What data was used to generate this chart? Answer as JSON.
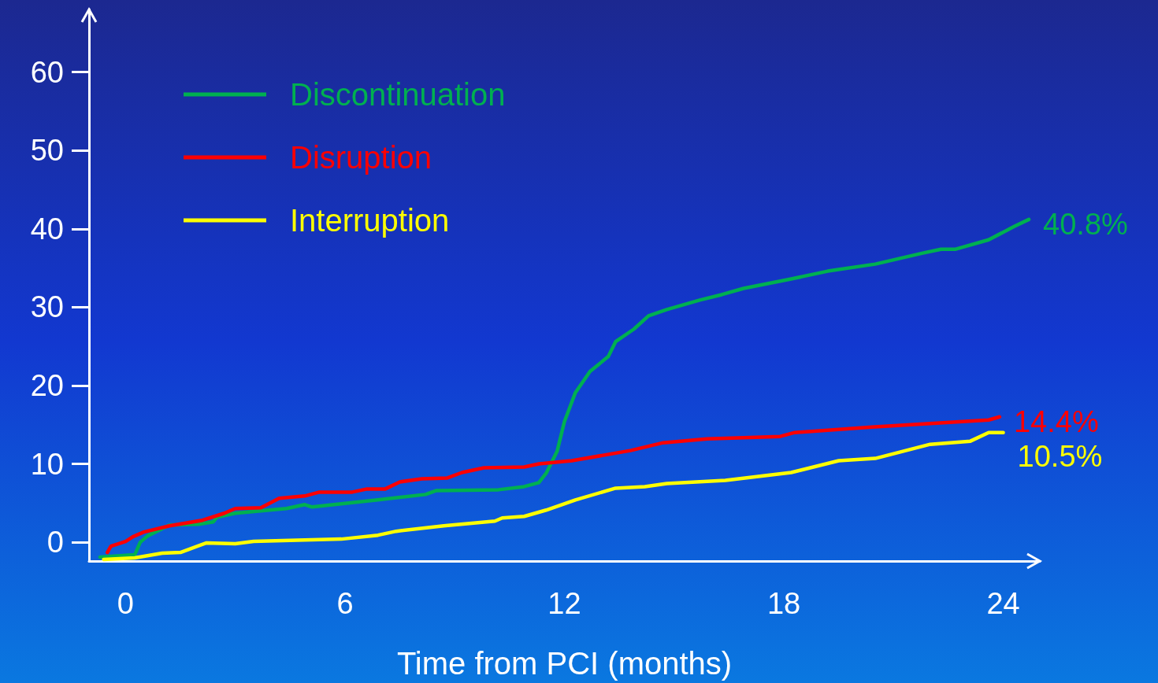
{
  "chart_data": {
    "type": "line",
    "xlabel": "Time from PCI (months)",
    "xlim": [
      -1,
      25
    ],
    "xticks": [
      0,
      6,
      12,
      18,
      24
    ],
    "ylim": [
      -2.4,
      68
    ],
    "yticks": [
      0,
      10,
      20,
      30,
      40,
      50,
      60
    ],
    "grid": false,
    "legend": "top left",
    "marker": "none",
    "line_style": "solid",
    "series": [
      {
        "name": "Discontinuation",
        "color": "#00b050",
        "x": [
          -0.7,
          0.25,
          0.4,
          0.6,
          1.2,
          2.0,
          2.4,
          2.5,
          3.0,
          4.4,
          4.9,
          5.1,
          5.7,
          6.9,
          8.2,
          8.5,
          10.2,
          10.9,
          11.3,
          11.5,
          11.8,
          12.0,
          12.3,
          12.7,
          13.2,
          13.4,
          13.9,
          14.3,
          14.8,
          15.7,
          16.3,
          16.9,
          18.2,
          19.2,
          20.5,
          21.8,
          22.3,
          22.7,
          23.6,
          24.3,
          24.7
        ],
        "values": [
          -1.9,
          -1.6,
          0,
          0.8,
          2.2,
          2.3,
          2.6,
          3.2,
          3.7,
          4.3,
          4.8,
          4.5,
          4.8,
          5.4,
          6.1,
          6.6,
          6.7,
          7.1,
          7.6,
          8.8,
          11.6,
          15.4,
          19.1,
          21.8,
          23.7,
          25.6,
          27.2,
          28.9,
          29.7,
          30.9,
          31.6,
          32.4,
          33.6,
          34.6,
          35.5,
          36.9,
          37.4,
          37.4,
          38.6,
          40.3,
          41.2
        ]
      },
      {
        "name": "Disruption",
        "color": "#ff0000",
        "x": [
          -0.5,
          -0.4,
          0,
          0.2,
          0.5,
          1.2,
          2.1,
          2.7,
          3.0,
          3.7,
          4.2,
          4.9,
          5.3,
          6.2,
          6.6,
          7.1,
          7.5,
          8.1,
          8.8,
          9.2,
          9.8,
          10.9,
          11.3,
          12.2,
          13.8,
          14.7,
          15.9,
          17.9,
          18.3,
          20.4,
          23.6,
          23.9
        ],
        "values": [
          -1.3,
          -0.5,
          0.1,
          0.7,
          1.3,
          2.1,
          2.8,
          3.7,
          4.3,
          4.4,
          5.6,
          5.9,
          6.4,
          6.4,
          6.8,
          6.8,
          7.7,
          8.1,
          8.2,
          8.9,
          9.5,
          9.6,
          10.0,
          10.4,
          11.7,
          12.7,
          13.2,
          13.5,
          14.0,
          14.7,
          15.6,
          16.0
        ]
      },
      {
        "name": "Interruption",
        "color": "#ffff00",
        "x": [
          -0.6,
          0.25,
          1.0,
          1.5,
          2.2,
          3.0,
          3.5,
          5.9,
          6.9,
          7.4,
          8.7,
          10.1,
          10.3,
          10.9,
          11.5,
          12.3,
          13.4,
          14.2,
          14.8,
          16.4,
          18.2,
          19.5,
          20.5,
          21.5,
          22.0,
          23.1,
          23.6,
          24.0
        ],
        "values": [
          -2.2,
          -2.0,
          -1.4,
          -1.3,
          -0.1,
          -0.2,
          0.1,
          0.4,
          0.9,
          1.4,
          2.1,
          2.7,
          3.1,
          3.3,
          4.1,
          5.4,
          6.9,
          7.1,
          7.5,
          7.9,
          8.9,
          10.4,
          10.7,
          11.9,
          12.5,
          12.9,
          14.0,
          14.0
        ]
      }
    ],
    "annotations": [
      {
        "text": "40.8%",
        "x": 24.7,
        "y": 41.2
      },
      {
        "text": "14.4%",
        "x": 23.9,
        "y": 16.0
      },
      {
        "text": "10.5%",
        "x": 24.0,
        "y": 14.0
      }
    ]
  }
}
